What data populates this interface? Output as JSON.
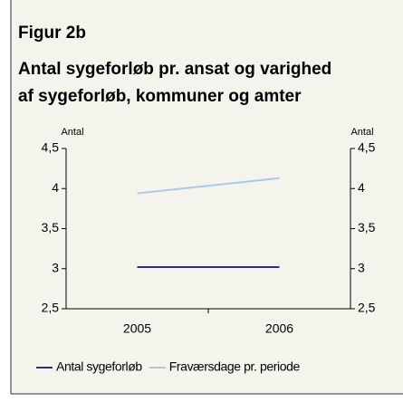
{
  "chart_data": {
    "type": "line",
    "title": "Figur 2b",
    "subtitle": [
      "Antal sygeforløb pr. ansat og varighed",
      "af sygeforløb, kommuner og amter"
    ],
    "ylabel": "Antal",
    "y2label": "Antal",
    "categories": [
      "2005",
      "2006"
    ],
    "series": [
      {
        "name": "Antal sygeforløb",
        "color": "#2b2f7c",
        "values": [
          3.02,
          3.02
        ]
      },
      {
        "name": "Fraværsdage pr. periode",
        "color": "#a9c8ea",
        "values": [
          3.94,
          4.13
        ],
        "axis": "y2"
      }
    ],
    "ylim": [
      2.5,
      4.5
    ],
    "yticks": [
      {
        "value": 2.5,
        "label": "2,5"
      },
      3,
      {
        "value": 3.5,
        "label": "3,5"
      },
      4,
      {
        "value": 4.5,
        "label": "4,5"
      }
    ],
    "y2lim": [
      2.5,
      4.5
    ],
    "y2ticks": [
      {
        "value": 2.5,
        "label": "2,5"
      },
      3,
      {
        "value": 3.5,
        "label": "3,5"
      },
      4,
      {
        "value": 4.5,
        "label": "4,5"
      }
    ],
    "legend": "bottom"
  }
}
